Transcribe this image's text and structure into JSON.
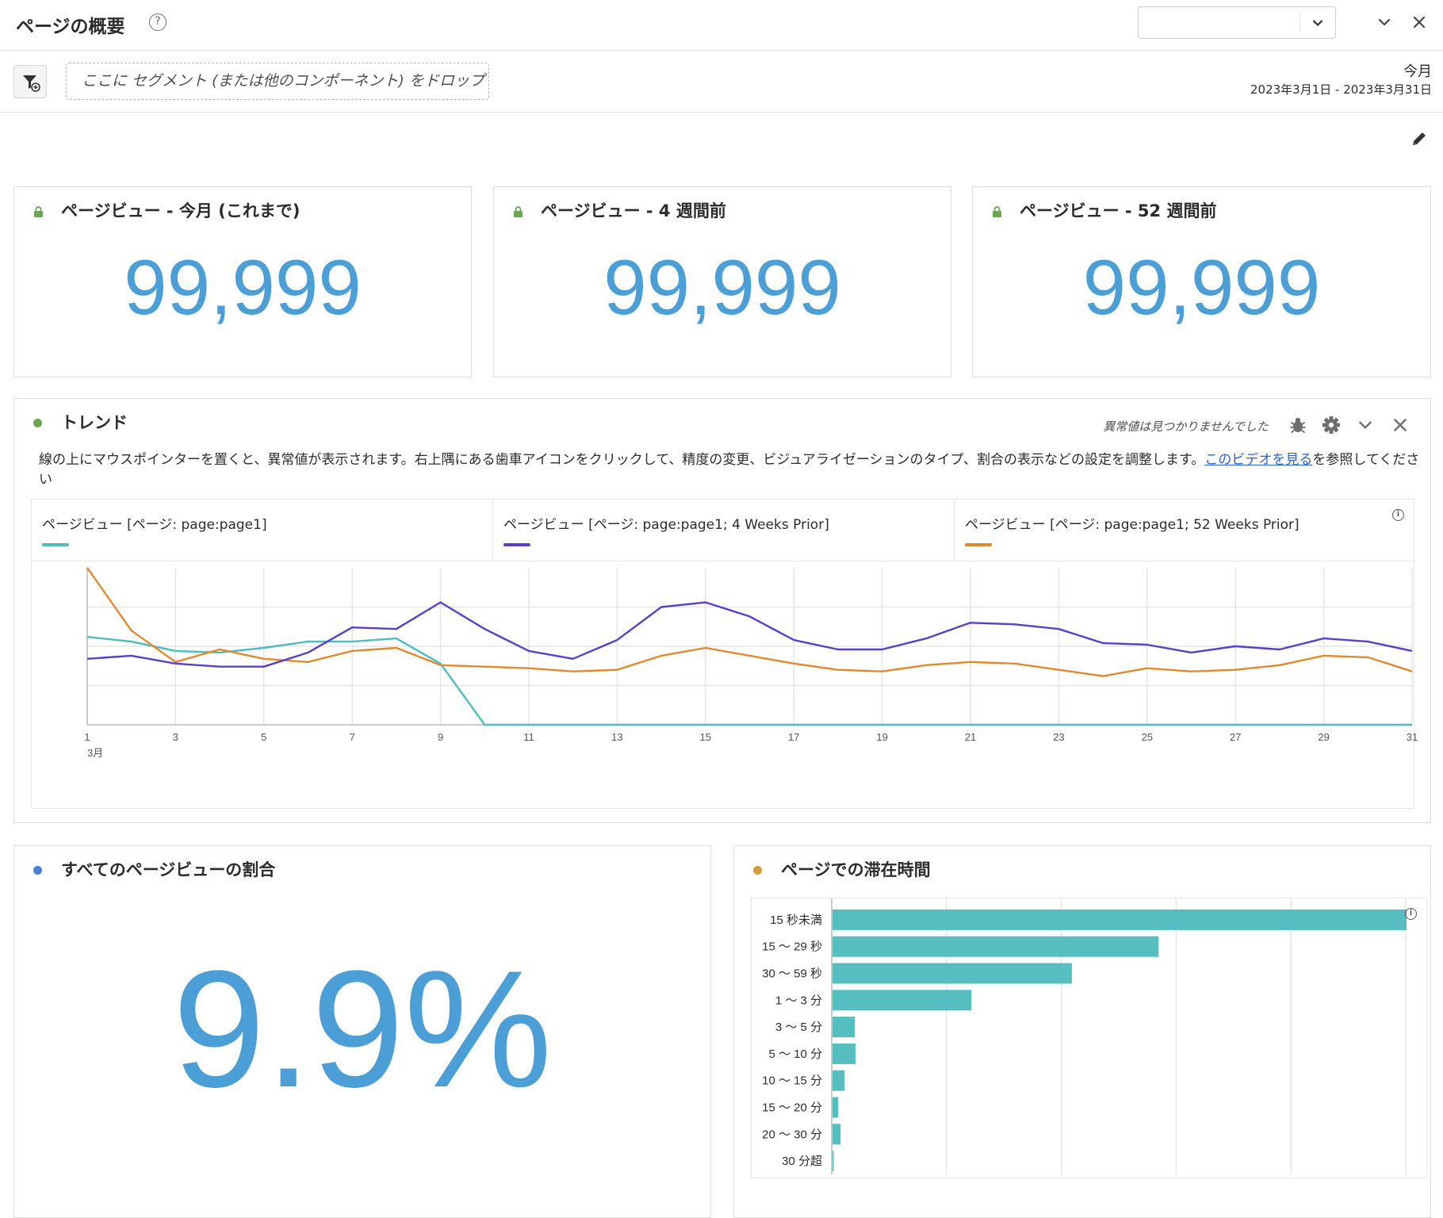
{
  "header": {
    "title": "ページの概要",
    "help_label": "?",
    "selected_value": ""
  },
  "segment_bar": {
    "dropzone_text": "ここに セグメント (または他のコンポーネント) をドロップ",
    "date_label": "今月",
    "date_range": "2023年3月1日 - 2023年3月31日"
  },
  "kpi_cards": [
    {
      "title": "ページビュー - 今月 (これまで)",
      "value": "99,999"
    },
    {
      "title": "ページビュー - 4 週間前",
      "value": "99,999"
    },
    {
      "title": "ページビュー - 52 週間前",
      "value": "99,999"
    }
  ],
  "trend": {
    "title": "トレンド",
    "status": "異常値は見つかりませんでした",
    "description": "線の上にマウスポインターを置くと、異常値が表示されます。右上隅にある歯車アイコンをクリックして、精度の変更、ビジュアライゼーションのタイプ、割合の表示などの設定を調整します。",
    "link_text": "このビデオを見る",
    "description_suffix": "を参照してください",
    "month_label": "3月"
  },
  "share_card": {
    "title": "すべてのページビューの割合",
    "value": "9.9%"
  },
  "time_card": {
    "title": "ページでの滞在時間"
  },
  "colors": {
    "accent_blue": "#4b9fd6",
    "series_teal": "#4fbcbf",
    "series_purple": "#5c3fc8",
    "series_orange": "#e08a2f",
    "dot_green": "#6aa84f",
    "dot_blue": "#4a7fd6",
    "dot_orange": "#d69a3c",
    "bar_teal": "#56bdc1"
  },
  "chart_data": [
    {
      "type": "line",
      "x": [
        1,
        2,
        3,
        4,
        5,
        6,
        7,
        8,
        9,
        10,
        11,
        12,
        13,
        14,
        15,
        16,
        17,
        18,
        19,
        20,
        21,
        22,
        23,
        24,
        25,
        26,
        27,
        28,
        29,
        30,
        31
      ],
      "xticks": [
        "1",
        "3",
        "5",
        "7",
        "9",
        "11",
        "13",
        "15",
        "17",
        "19",
        "21",
        "23",
        "25",
        "27",
        "29",
        "31"
      ],
      "xlabel": "3月",
      "ylim": [
        0,
        100
      ],
      "grid": true,
      "series": [
        {
          "name": "ページビュー [ページ: page:page1]",
          "color": "#4fbcbf",
          "values": [
            56,
            53,
            47,
            46,
            49,
            53,
            53,
            55,
            39,
            0,
            0,
            0,
            0,
            0,
            0,
            0,
            0,
            0,
            0,
            0,
            0,
            0,
            0,
            0,
            0,
            0,
            0,
            0,
            0,
            0,
            0
          ]
        },
        {
          "name": "ページビュー [ページ: page:page1; 4 Weeks Prior]",
          "color": "#5c3fc8",
          "values": [
            42,
            44,
            39,
            37,
            37,
            46,
            62,
            61,
            78,
            61,
            47,
            42,
            54,
            75,
            78,
            69,
            54,
            48,
            48,
            55,
            65,
            64,
            61,
            52,
            51,
            46,
            50,
            48,
            55,
            53,
            47
          ]
        },
        {
          "name": "ページビュー [ページ: page:page1; 52 Weeks Prior]",
          "color": "#e08a2f",
          "values": [
            100,
            60,
            40,
            48,
            42,
            40,
            47,
            49,
            38,
            37,
            36,
            34,
            35,
            44,
            49,
            44,
            39,
            35,
            34,
            38,
            40,
            39,
            35,
            31,
            36,
            34,
            35,
            38,
            44,
            43,
            34
          ]
        }
      ]
    },
    {
      "type": "bar",
      "orientation": "horizontal",
      "categories": [
        "15 秒未満",
        "15 〜 29 秒",
        "30 〜 59 秒",
        "1 〜 3 分",
        "3 〜 5 分",
        "5 〜 10 分",
        "10 〜 15 分",
        "15 〜 20 分",
        "20 〜 30 分",
        "30 分超"
      ],
      "values": [
        100,
        56.8,
        41.7,
        24.2,
        3.9,
        4.0,
        2.1,
        1.0,
        1.4,
        0.2
      ],
      "xlim": [
        0,
        100
      ],
      "grid": true
    }
  ]
}
